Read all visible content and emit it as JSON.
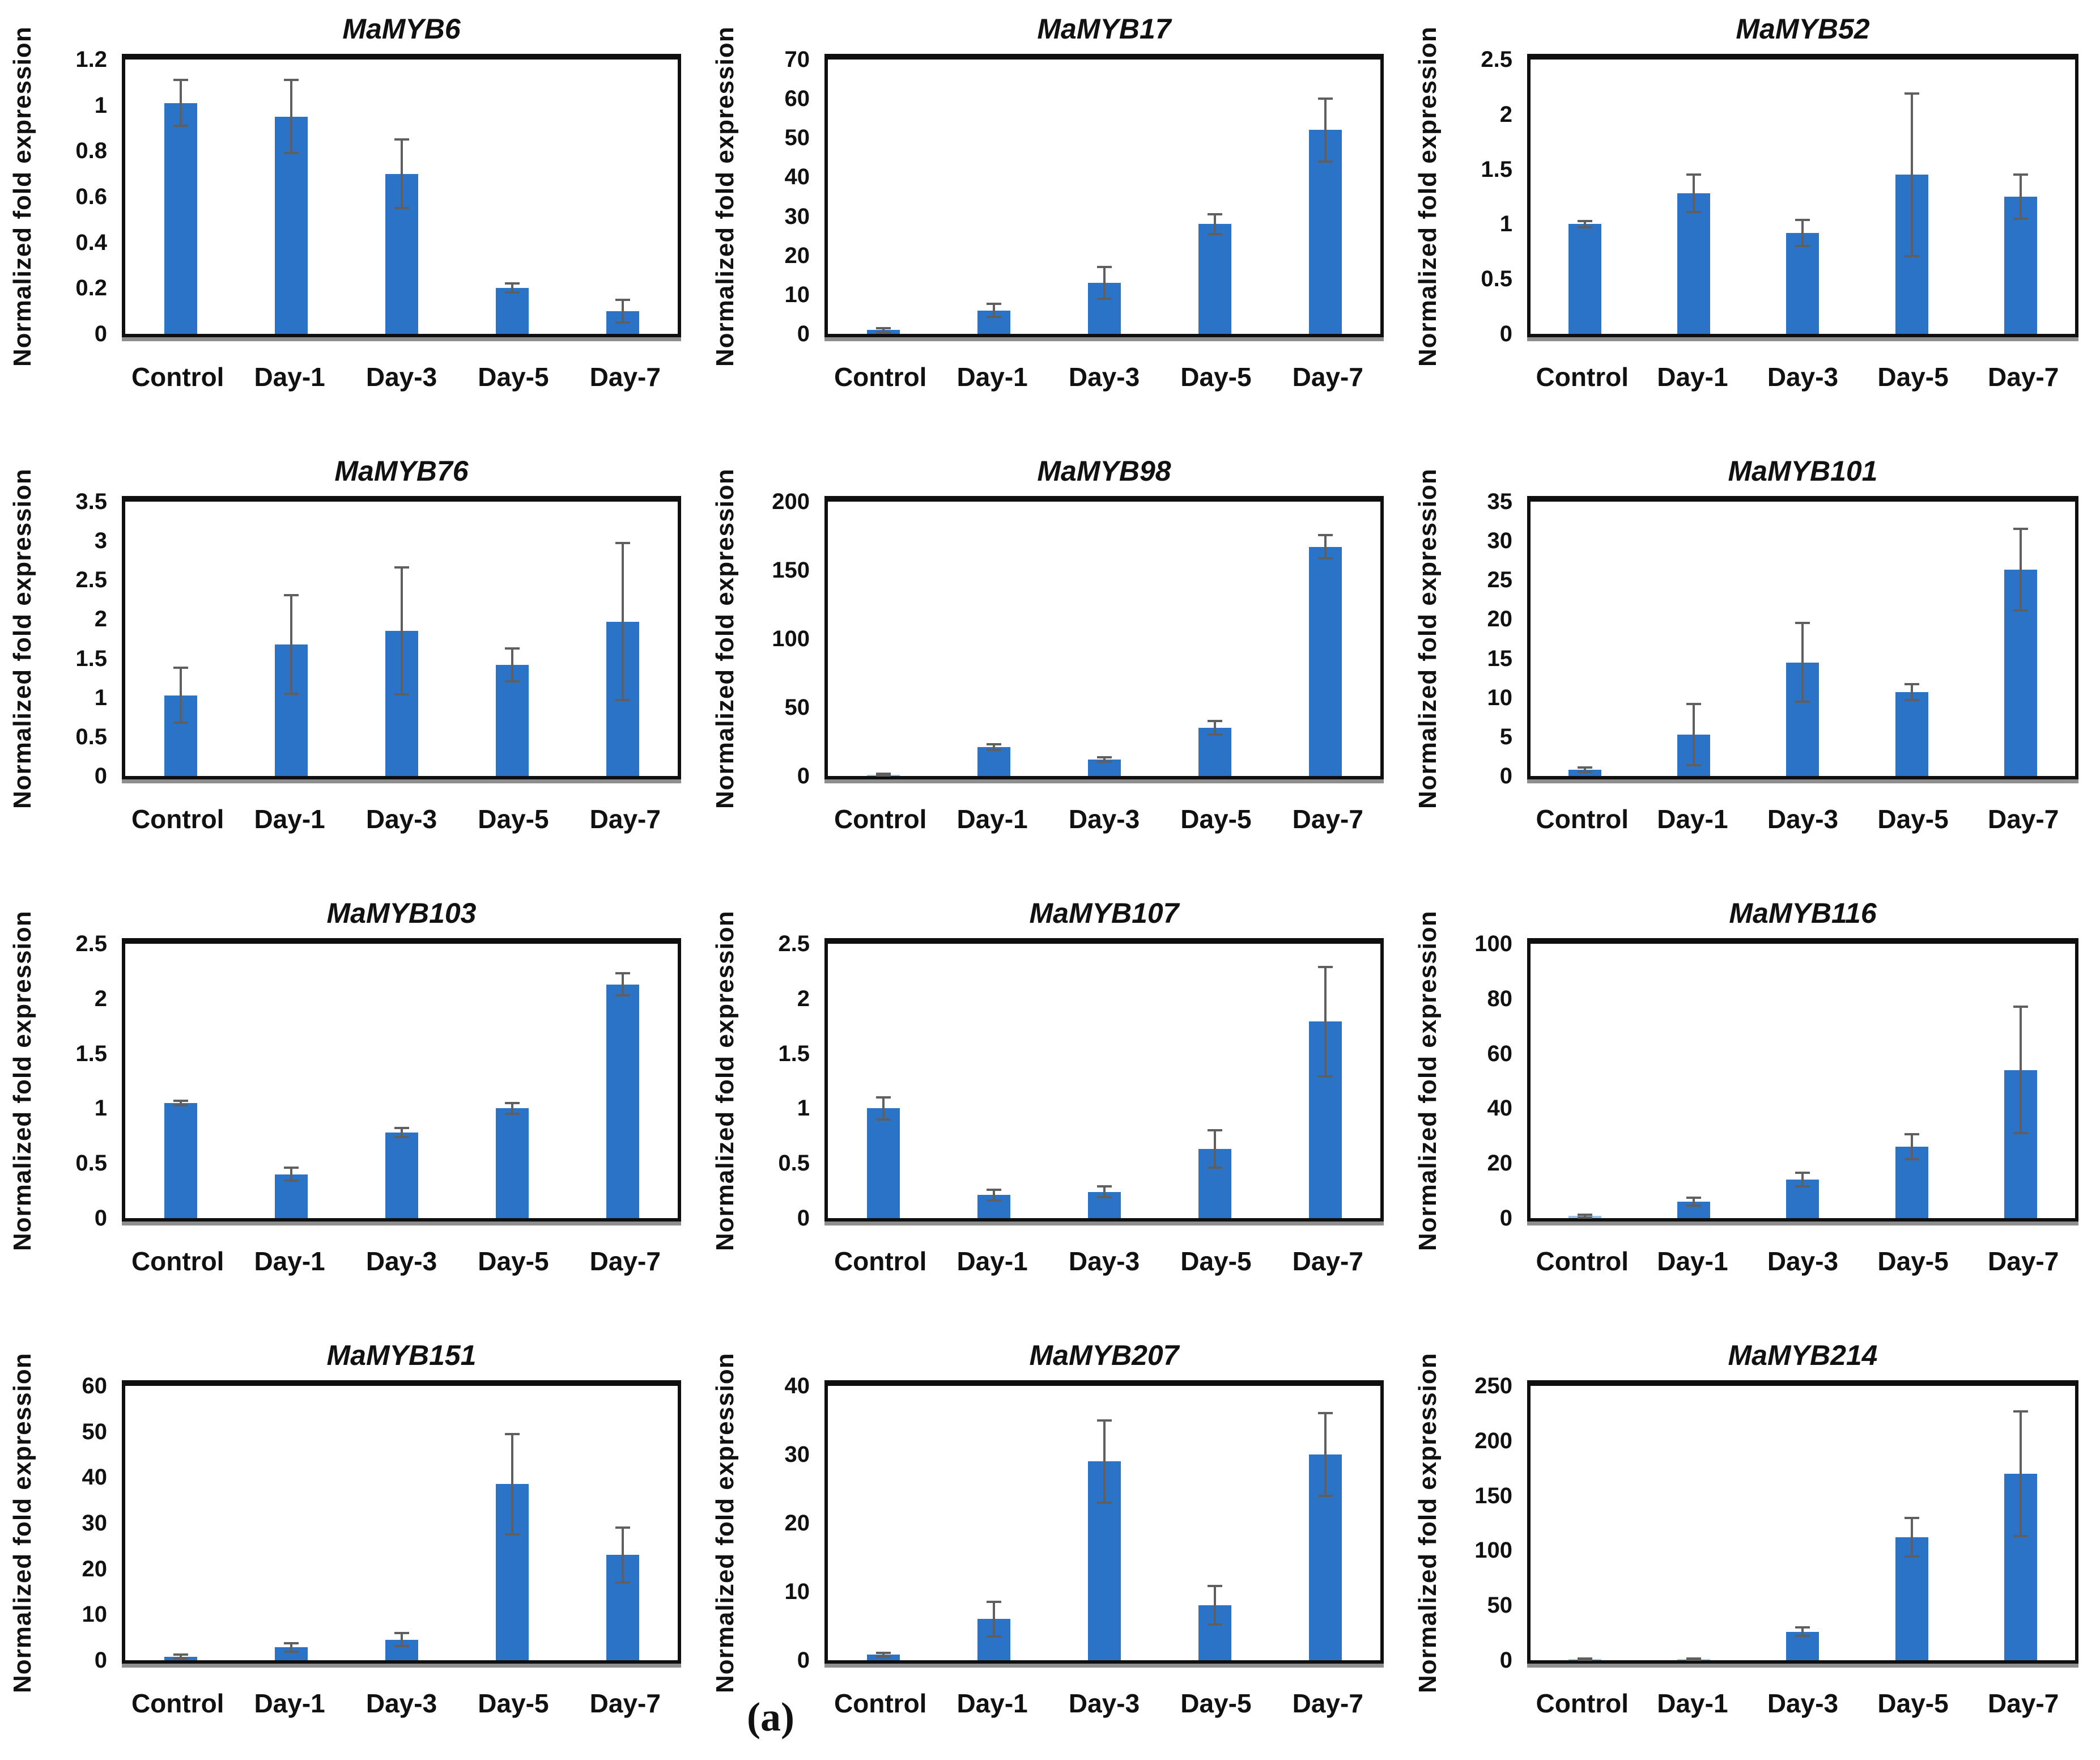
{
  "figure": {
    "caption": "(a)",
    "ylabel": "Normalized fold expression",
    "categories": [
      "Control",
      "Day-1",
      "Day-3",
      "Day-5",
      "Day-7"
    ],
    "bar_color": "#2a73c6",
    "light_bar_color": "#9dc3e6",
    "error_bar_color": "#5f5f5f",
    "frame_color": "#0f0f0f",
    "baseline_color": "#8f8f8f"
  },
  "chart_data": [
    {
      "type": "bar",
      "title": "MaMYB6",
      "ylabel": "Normalized fold expression",
      "categories": [
        "Control",
        "Day-1",
        "Day-3",
        "Day-5",
        "Day-7"
      ],
      "values": [
        1.01,
        0.95,
        0.7,
        0.2,
        0.1
      ],
      "errors": [
        0.1,
        0.16,
        0.15,
        0.02,
        0.05
      ],
      "ylim": [
        0,
        1.2
      ],
      "yticks": [
        "0",
        "0.2",
        "0.4",
        "0.6",
        "0.8",
        "1",
        "1.2"
      ],
      "light_bars": []
    },
    {
      "type": "bar",
      "title": "MaMYB17",
      "ylabel": "Normalized fold expression",
      "categories": [
        "Control",
        "Day-1",
        "Day-3",
        "Day-5",
        "Day-7"
      ],
      "values": [
        1.0,
        6.0,
        13.0,
        28.0,
        52.0
      ],
      "errors": [
        0.5,
        1.7,
        4.0,
        2.5,
        8.0
      ],
      "ylim": [
        0,
        70
      ],
      "yticks": [
        "0",
        "10",
        "20",
        "30",
        "40",
        "50",
        "60",
        "70"
      ],
      "light_bars": []
    },
    {
      "type": "bar",
      "title": "MaMYB52",
      "ylabel": "Normalized fold expression",
      "categories": [
        "Control",
        "Day-1",
        "Day-3",
        "Day-5",
        "Day-7"
      ],
      "values": [
        1.0,
        1.28,
        0.92,
        1.45,
        1.25
      ],
      "errors": [
        0.03,
        0.17,
        0.12,
        0.74,
        0.2
      ],
      "ylim": [
        0,
        2.5
      ],
      "yticks": [
        "0",
        "0.5",
        "1",
        "1.5",
        "2",
        "2.5"
      ],
      "light_bars": []
    },
    {
      "type": "bar",
      "title": "MaMYB76",
      "ylabel": "Normalized fold expression",
      "categories": [
        "Control",
        "Day-1",
        "Day-3",
        "Day-5",
        "Day-7"
      ],
      "values": [
        1.03,
        1.68,
        1.85,
        1.42,
        1.97
      ],
      "errors": [
        0.35,
        0.63,
        0.81,
        0.21,
        1.0
      ],
      "ylim": [
        0,
        3.5
      ],
      "yticks": [
        "0",
        "0.5",
        "1",
        "1.5",
        "2",
        "2.5",
        "3",
        "3.5"
      ],
      "light_bars": []
    },
    {
      "type": "bar",
      "title": "MaMYB98",
      "ylabel": "Normalized fold expression",
      "categories": [
        "Control",
        "Day-1",
        "Day-3",
        "Day-5",
        "Day-7"
      ],
      "values": [
        1.0,
        21.0,
        12.0,
        35.0,
        167.0
      ],
      "errors": [
        0.5,
        2.0,
        1.5,
        5.0,
        8.5
      ],
      "ylim": [
        0,
        200
      ],
      "yticks": [
        "0",
        "50",
        "100",
        "150",
        "200"
      ],
      "light_bars": [
        0
      ]
    },
    {
      "type": "bar",
      "title": "MaMYB101",
      "ylabel": "Normalized fold expression",
      "categories": [
        "Control",
        "Day-1",
        "Day-3",
        "Day-5",
        "Day-7"
      ],
      "values": [
        0.8,
        5.3,
        14.5,
        10.7,
        26.3
      ],
      "errors": [
        0.3,
        3.9,
        5.0,
        1.0,
        5.2
      ],
      "ylim": [
        0,
        35
      ],
      "yticks": [
        "0",
        "5",
        "10",
        "15",
        "20",
        "25",
        "30",
        "35"
      ],
      "light_bars": []
    },
    {
      "type": "bar",
      "title": "MaMYB103",
      "ylabel": "Normalized fold expression",
      "categories": [
        "Control",
        "Day-1",
        "Day-3",
        "Day-5",
        "Day-7"
      ],
      "values": [
        1.05,
        0.4,
        0.78,
        1.0,
        2.13
      ],
      "errors": [
        0.02,
        0.06,
        0.04,
        0.05,
        0.1
      ],
      "ylim": [
        0,
        2.5
      ],
      "yticks": [
        "0",
        "0.5",
        "1",
        "1.5",
        "2",
        "2.5"
      ],
      "light_bars": []
    },
    {
      "type": "bar",
      "title": "MaMYB107",
      "ylabel": "Normalized fold expression",
      "categories": [
        "Control",
        "Day-1",
        "Day-3",
        "Day-5",
        "Day-7"
      ],
      "values": [
        1.0,
        0.21,
        0.24,
        0.63,
        1.79
      ],
      "errors": [
        0.1,
        0.05,
        0.05,
        0.17,
        0.5
      ],
      "ylim": [
        0,
        2.5
      ],
      "yticks": [
        "0",
        "0.5",
        "1",
        "1.5",
        "2",
        "2.5"
      ],
      "light_bars": []
    },
    {
      "type": "bar",
      "title": "MaMYB116",
      "ylabel": "Normalized fold expression",
      "categories": [
        "Control",
        "Day-1",
        "Day-3",
        "Day-5",
        "Day-7"
      ],
      "values": [
        0.8,
        6.0,
        14.0,
        26.0,
        54.0
      ],
      "errors": [
        0.5,
        1.5,
        2.5,
        4.5,
        23.0
      ],
      "ylim": [
        0,
        100
      ],
      "yticks": [
        "0",
        "20",
        "40",
        "60",
        "80",
        "100"
      ],
      "light_bars": [
        0
      ]
    },
    {
      "type": "bar",
      "title": "MaMYB151",
      "ylabel": "Normalized fold expression",
      "categories": [
        "Control",
        "Day-1",
        "Day-3",
        "Day-5",
        "Day-7"
      ],
      "values": [
        0.8,
        2.8,
        4.5,
        38.5,
        23.0
      ],
      "errors": [
        0.4,
        0.9,
        1.4,
        11.0,
        6.0
      ],
      "ylim": [
        0,
        60
      ],
      "yticks": [
        "0",
        "10",
        "20",
        "30",
        "40",
        "50",
        "60"
      ],
      "light_bars": []
    },
    {
      "type": "bar",
      "title": "MaMYB207",
      "ylabel": "Normalized fold expression",
      "categories": [
        "Control",
        "Day-1",
        "Day-3",
        "Day-5",
        "Day-7"
      ],
      "values": [
        0.8,
        6.0,
        29.0,
        8.0,
        30.0
      ],
      "errors": [
        0.3,
        2.5,
        6.0,
        2.8,
        6.0
      ],
      "ylim": [
        0,
        40
      ],
      "yticks": [
        "0",
        "10",
        "20",
        "30",
        "40"
      ],
      "light_bars": []
    },
    {
      "type": "bar",
      "title": "MaMYB214",
      "ylabel": "Normalized fold expression",
      "categories": [
        "Control",
        "Day-1",
        "Day-3",
        "Day-5",
        "Day-7"
      ],
      "values": [
        1.0,
        1.0,
        26.0,
        112.0,
        170.0
      ],
      "errors": [
        0.5,
        0.5,
        4.0,
        17.5,
        57.0
      ],
      "ylim": [
        0,
        250
      ],
      "yticks": [
        "0",
        "50",
        "100",
        "150",
        "200",
        "250"
      ],
      "light_bars": [
        0,
        1
      ]
    }
  ]
}
